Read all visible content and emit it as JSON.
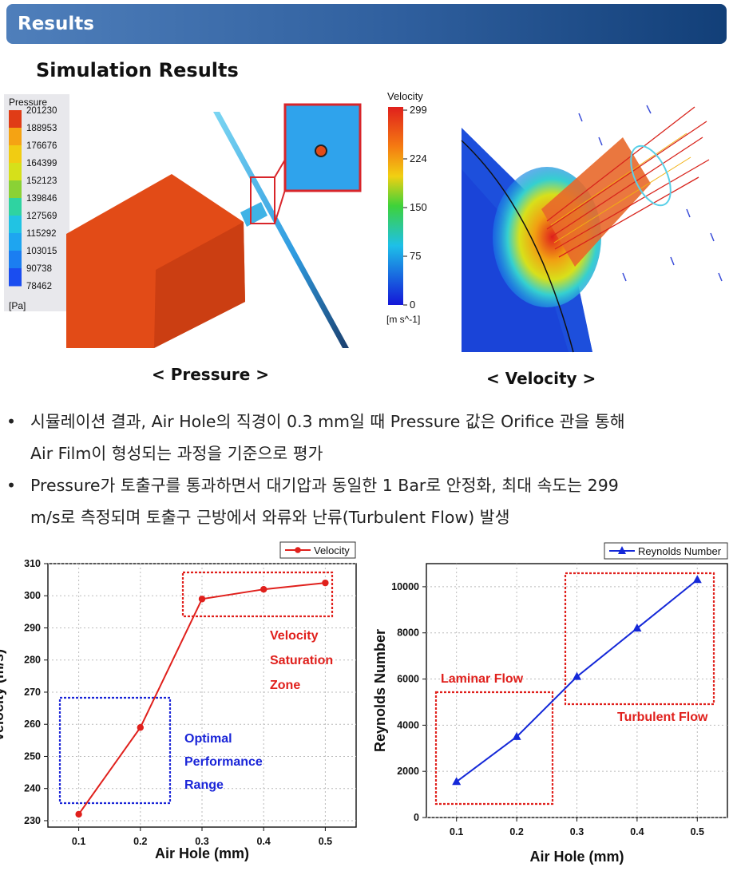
{
  "header": {
    "title": "Results"
  },
  "section": {
    "subtitle": "Simulation Results"
  },
  "pressure_panel": {
    "legend_title": "Pressure",
    "legend_values": [
      "201230",
      "188953",
      "176676",
      "164399",
      "152123",
      "139846",
      "127569",
      "115292",
      "103015",
      "90738",
      "78462"
    ],
    "legend_unit": "[Pa]",
    "caption": "< Pressure >",
    "colors": [
      "#e03c16",
      "#f5a313",
      "#f1cc12",
      "#d6e01a",
      "#8ad235",
      "#2fd3a1",
      "#21c3e3",
      "#1ea5f0",
      "#1b7ef1",
      "#1a4df0",
      "#0e1bd6"
    ]
  },
  "velocity_panel": {
    "legend_title": "Velocity",
    "legend_values": [
      "299",
      "224",
      "150",
      "75",
      "0"
    ],
    "legend_unit": "[m s^-1]",
    "caption": "< Velocity >"
  },
  "bullets": [
    {
      "line1": "시뮬레이션 결과, Air Hole의 직경이 0.3 mm일 때 Pressure 값은 Orifice 관을 통해",
      "line2": "Air Film이 형성되는 과정을 기준으로 평가"
    },
    {
      "line1": "Pressure가 토출구를 통과하면서 대기압과 동일한 1 Bar로 안정화, 최대 속도는 299",
      "line2": "m/s로 측정되며 토출구 근방에서 와류와 난류(Turbulent Flow) 발생"
    }
  ],
  "chart_data": [
    {
      "type": "line",
      "x": [
        0.1,
        0.2,
        0.3,
        0.4,
        0.5
      ],
      "series": [
        {
          "name": "Velocity",
          "values": [
            232,
            259,
            299,
            302,
            304
          ],
          "color": "#e0201c"
        }
      ],
      "xlabel": "Air Hole (mm)",
      "ylabel": "Velocity (m/s)",
      "xticks": [
        "0.1",
        "0.2",
        "0.3",
        "0.4",
        "0.5"
      ],
      "yticks": [
        "230",
        "240",
        "250",
        "260",
        "270",
        "280",
        "290",
        "300",
        "310"
      ],
      "xlim": [
        0.05,
        0.55
      ],
      "ylim": [
        228,
        310
      ],
      "grid": true,
      "legend": "top-right",
      "annotations": [
        {
          "lines": [
            "Velocity",
            "Saturation",
            "Zone"
          ],
          "color": "#e0201c"
        },
        {
          "lines": [
            "Optimal",
            "Performance",
            "Range"
          ],
          "color": "#1a25d8"
        }
      ]
    },
    {
      "type": "line",
      "x": [
        0.1,
        0.2,
        0.3,
        0.4,
        0.5
      ],
      "series": [
        {
          "name": "Reynolds Number",
          "values": [
            1550,
            3500,
            6100,
            8200,
            10300
          ],
          "color": "#1428d8"
        }
      ],
      "xlabel": "Air Hole (mm)",
      "ylabel": "Reynolds Number",
      "xticks": [
        "0.1",
        "0.2",
        "0.3",
        "0.4",
        "0.5"
      ],
      "yticks": [
        "0",
        "2000",
        "4000",
        "6000",
        "8000",
        "10000"
      ],
      "xlim": [
        0.05,
        0.55
      ],
      "ylim": [
        0,
        11000
      ],
      "grid": true,
      "legend": "top-right",
      "annotations": [
        {
          "lines": [
            "Laminar Flow"
          ],
          "color": "#e0201c"
        },
        {
          "lines": [
            "Turbulent Flow"
          ],
          "color": "#e0201c"
        }
      ]
    }
  ]
}
